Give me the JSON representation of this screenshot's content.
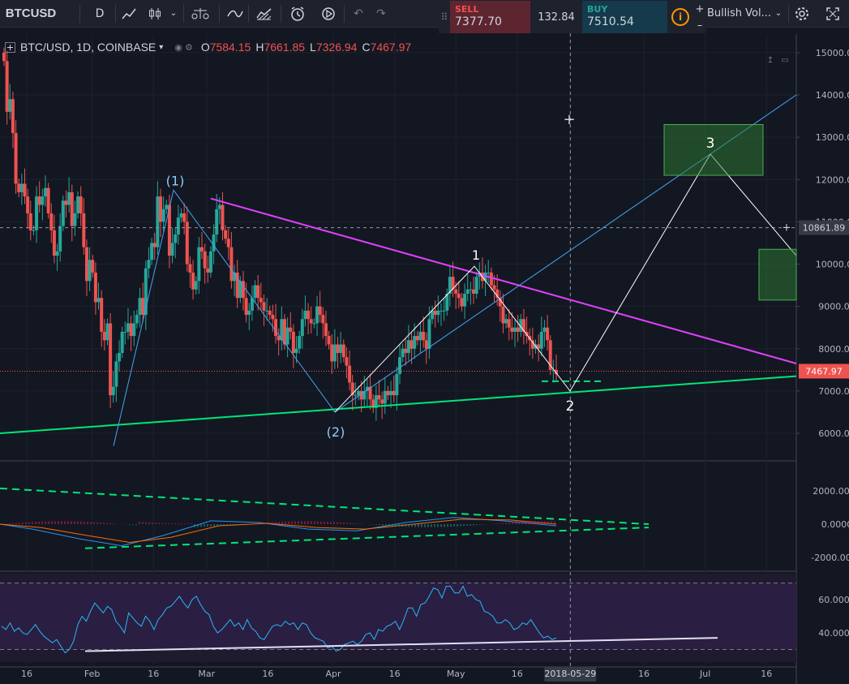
{
  "toolbar": {
    "symbol": "BTCUSD",
    "interval": "D",
    "indicator_name": "Bullish Vol...",
    "icons": [
      "plus-square-icon",
      "chevron-down-icon",
      "bar-style-icon",
      "candle-style-icon",
      "chevron-down-icon",
      "scales-icon",
      "line-style-icon",
      "area-style-icon",
      "alert-icon",
      "replay-icon",
      "undo-icon",
      "redo-icon",
      "gear-icon",
      "fullscreen-icon"
    ]
  },
  "trade": {
    "sell_label": "SELL",
    "sell_price": "7377.70",
    "spread": "132.84",
    "buy_label": "BUY",
    "buy_price": "7510.54",
    "info_icon": "i",
    "zoom_in": "+",
    "zoom_out": "–"
  },
  "legend": {
    "title": "BTC/USD, 1D, COINBASE",
    "o_label": "O",
    "o": "7584.15",
    "h_label": "H",
    "h": "7661.85",
    "l_label": "L",
    "l": "7326.94",
    "c_label": "C",
    "c": "7467.97"
  },
  "colors": {
    "background": "#131722",
    "up": "#26a69a",
    "down": "#ef5350",
    "channel_upper": "#e040fb",
    "channel_lower": "#00e676",
    "wave": "#ffffff",
    "projection_fib": "#42a5f5",
    "target_box": "#2e7d32"
  },
  "chart_data": [
    {
      "type": "candlestick",
      "title": "BTC/USD, 1D, COINBASE",
      "x_ticks": [
        "16",
        "Feb",
        "16",
        "Mar",
        "16",
        "Apr",
        "16",
        "May",
        "16",
        "2018-05-29",
        "16",
        "Jul",
        "16"
      ],
      "y_ticks": [
        "15000.00",
        "14000.00",
        "13000.00",
        "12000.00",
        "11000.00",
        "10000.00",
        "9000.00",
        "8000.00",
        "7000.00",
        "6000.00"
      ],
      "ylim": [
        5400,
        15400
      ],
      "price_labels": {
        "crosshair": "10861.89",
        "last": "7467.97"
      },
      "waves": [
        {
          "label": "(1)",
          "x": "2018-02-20",
          "y": 11750
        },
        {
          "label": "(2)",
          "x": "2018-04-01",
          "y": 6500
        },
        {
          "label": "1",
          "x": "2018-05-05",
          "y": 9950
        },
        {
          "label": "2",
          "x": "2018-05-29",
          "y": 7000
        },
        {
          "label": "3",
          "x": "2018-06-30",
          "y": 12600
        }
      ],
      "closes": [
        14800,
        13600,
        13900,
        13100,
        11900,
        11700,
        11900,
        11600,
        11200,
        10800,
        10800,
        11600,
        11400,
        11600,
        11800,
        11200,
        10800,
        10200,
        10300,
        10900,
        11500,
        11400,
        11700,
        10900,
        11200,
        11600,
        11200,
        10400,
        9600,
        10100,
        9800,
        9100,
        9200,
        8400,
        8200,
        8600,
        6900,
        7100,
        7700,
        7900,
        8400,
        8400,
        8600,
        8300,
        8600,
        8800,
        9200,
        8800,
        9900,
        10100,
        10500,
        10400,
        11600,
        11000,
        11300,
        11400,
        10200,
        10500,
        10700,
        11100,
        11200,
        11000,
        10000,
        9800,
        9400,
        9600,
        10400,
        10300,
        9900,
        9800,
        10300,
        10700,
        11300,
        11400,
        10800,
        10600,
        10400,
        9600,
        9800,
        9200,
        9600,
        9200,
        8800,
        8900,
        9200,
        9500,
        9200,
        9100,
        8900,
        8900,
        8800,
        8700,
        8300,
        8200,
        8700,
        8100,
        8500,
        8400,
        7900,
        8000,
        8300,
        8700,
        8900,
        8700,
        8600,
        8600,
        9000,
        8800,
        8600,
        8300,
        8100,
        7700,
        8100,
        7900,
        8100,
        7800,
        7600,
        7200,
        6900,
        6900,
        7000,
        6800,
        7000,
        7100,
        6800,
        6600,
        6900,
        6800,
        6700,
        7000,
        6900,
        7000,
        6900,
        7400,
        7800,
        8000,
        7900,
        8200,
        8000,
        8300,
        8200,
        8400,
        8200,
        8000,
        8700,
        8900,
        8800,
        8900,
        8900,
        8900,
        9300,
        9700,
        9400,
        9300,
        9200,
        9000,
        9300,
        9400,
        9400,
        9300,
        9700,
        9800,
        9600,
        9800,
        9800,
        9500,
        9400,
        9200,
        9000,
        8600,
        8700,
        8500,
        8400,
        8500,
        8400,
        8700,
        8400,
        8300,
        8200,
        8000,
        8100,
        8000,
        8400,
        8500,
        8200,
        7500,
        7500,
        7400
      ],
      "projection_path": [
        {
          "x": "2018-05-29",
          "y": 7000
        },
        {
          "x": "2018-06-30",
          "y": 12600
        },
        {
          "x": "2018-07-21",
          "y": 10200
        }
      ]
    },
    {
      "type": "line",
      "title": "MACD",
      "y_ticks": [
        "2000.0000",
        "0.0000",
        "-2000.0000"
      ],
      "ylim": [
        -2100,
        2800
      ]
    },
    {
      "type": "line",
      "title": "RSI",
      "y_ticks": [
        "60.0000",
        "40.0000"
      ],
      "ylim": [
        25,
        74
      ],
      "values": [
        44,
        42,
        46,
        41,
        43,
        40,
        39,
        42,
        45,
        41,
        38,
        36,
        34,
        36,
        32,
        28,
        30,
        35,
        45,
        50,
        47,
        53,
        58,
        55,
        52,
        56,
        54,
        47,
        44,
        40,
        52,
        49,
        46,
        44,
        50,
        47,
        42,
        48,
        51,
        55,
        56,
        59,
        62,
        58,
        55,
        60,
        62,
        57,
        53,
        51,
        44,
        40,
        42,
        45,
        48,
        44,
        46,
        42,
        48,
        43,
        41,
        37,
        36,
        40,
        44,
        45,
        44,
        47,
        45,
        46,
        42,
        46,
        45,
        40,
        37,
        36,
        35,
        31,
        32,
        29,
        30,
        33,
        34,
        35,
        33,
        35,
        39,
        40,
        36,
        42,
        41,
        44,
        45,
        47,
        42,
        48,
        55,
        55,
        50,
        57,
        58,
        62,
        67,
        66,
        61,
        68,
        68,
        64,
        64,
        68,
        62,
        63,
        60,
        59,
        53,
        52,
        50,
        46,
        46,
        48,
        46,
        42,
        43,
        46,
        45,
        48,
        44,
        40,
        37,
        38,
        36,
        37
      ]
    }
  ],
  "time_axis_highlight": "2018-05-29"
}
